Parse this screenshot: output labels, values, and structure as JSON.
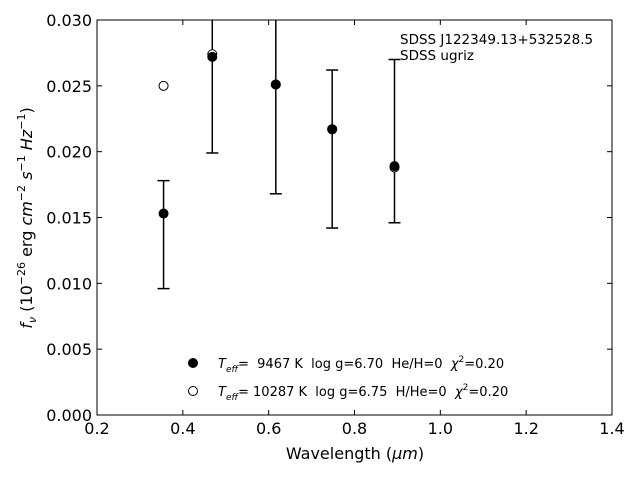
{
  "chart_data": {
    "type": "scatter",
    "title": "",
    "xlabel_main": "Wavelength (",
    "xlabel_unit": "μm",
    "xlabel_close": ")",
    "ylabel_parts": {
      "f": "f",
      "nu": "ν",
      "open": " (10",
      "exp1": "−26",
      "mid": " erg ",
      "cm": "cm",
      "exp2": "−2",
      "s": "s",
      "exp3": "−1",
      "hz": "Hz",
      "exp4": "−1",
      "close": ")"
    },
    "xlim": [
      0.2,
      1.4
    ],
    "ylim": [
      0.0,
      0.03
    ],
    "xticks": [
      "0.2",
      "0.4",
      "0.6",
      "0.8",
      "1.0",
      "1.2",
      "1.4"
    ],
    "yticks": [
      "0.000",
      "0.005",
      "0.010",
      "0.015",
      "0.020",
      "0.025",
      "0.030"
    ],
    "annotation": [
      "SDSS J122349.13+532528.5",
      "SDSS ugriz"
    ],
    "observed": {
      "x": [
        0.3551,
        0.4686,
        0.6166,
        0.748,
        0.8932
      ],
      "y": [
        0.0153,
        0.0272,
        0.0251,
        0.0217,
        0.0189
      ],
      "err_low": [
        0.0096,
        0.0199,
        0.0168,
        0.0142,
        0.0146
      ],
      "err_high": [
        0.0178,
        0.0313,
        0.0313,
        0.0262,
        0.027
      ]
    },
    "model": {
      "x": [
        0.3551,
        0.4686,
        0.6166,
        0.748,
        0.8932
      ],
      "y": [
        0.025,
        0.0274,
        0.0251,
        0.0217,
        0.0188
      ]
    },
    "legend": [
      {
        "marker": "filled",
        "teff_symbol": "T",
        "teff_sub": "eff",
        "teff_value": "=  9467 K  log g=6.70  He/H=0  ",
        "chi": "χ",
        "chi_exp": "2",
        "chi_value": "=0.20"
      },
      {
        "marker": "open",
        "teff_symbol": "T",
        "teff_sub": "eff",
        "teff_value": "= 10287 K  log g=6.75  H/He=0  ",
        "chi": "χ",
        "chi_exp": "2",
        "chi_value": "=0.20"
      }
    ]
  }
}
